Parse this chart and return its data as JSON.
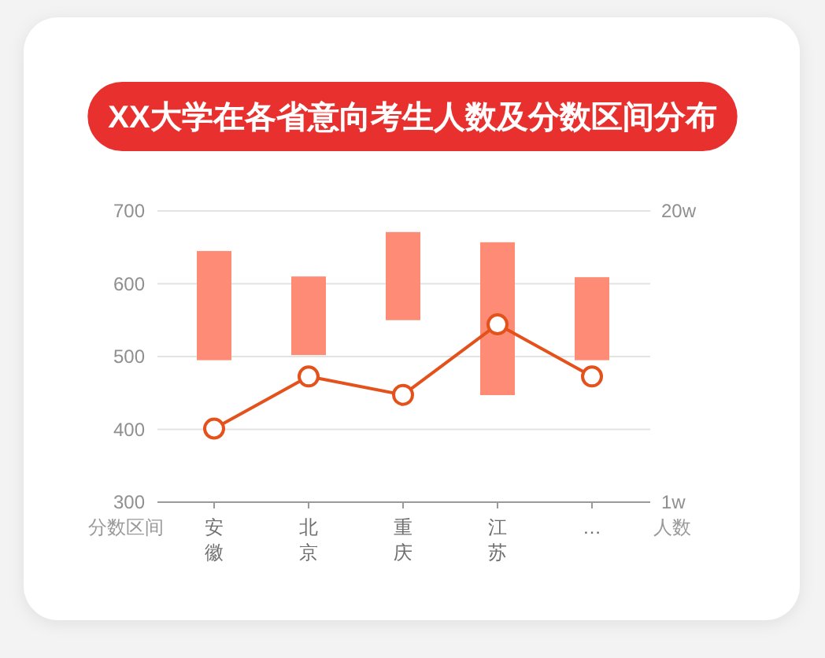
{
  "chart_data": {
    "type": "bar",
    "title": "XX大学在各省意向考生人数及分数区间分布",
    "categories": [
      "安徽",
      "北京",
      "重庆",
      "江苏",
      "…"
    ],
    "ylabel": "分数区间",
    "y2label": "人数",
    "ylim": [
      300,
      700
    ],
    "yticks": [
      300,
      400,
      500,
      600,
      700
    ],
    "y2lim": [
      1,
      20
    ],
    "y2ticks": [
      {
        "value": 1,
        "label": "1w"
      },
      {
        "value": 20,
        "label": "20w"
      }
    ],
    "grid": "y",
    "series": [
      {
        "color": "#fd8b76",
        "base": [
          495,
          502,
          550,
          447,
          495
        ],
        "values": [
          150,
          108,
          121,
          210,
          114
        ]
      },
      {
        "type": "line",
        "axis": "y2",
        "color": "#e4511b",
        "marker": "circle",
        "values": [
          5.8,
          9.2,
          8.0,
          12.6,
          9.2
        ]
      }
    ]
  }
}
